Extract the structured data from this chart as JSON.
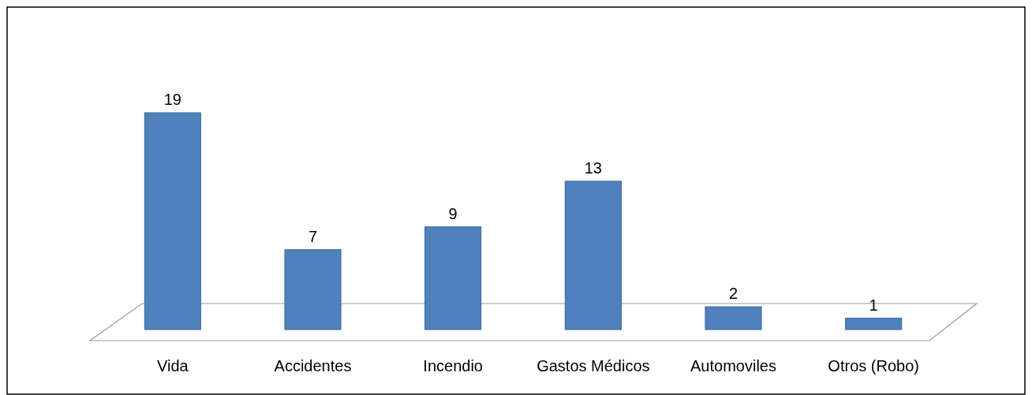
{
  "chart_data": {
    "type": "bar",
    "categories": [
      "Vida",
      "Accidentes",
      "Incendio",
      "Gastos Médicos",
      "Automoviles",
      "Otros (Robo)"
    ],
    "values": [
      19,
      7,
      9,
      13,
      2,
      1
    ],
    "color": "#4f81bd",
    "data_labels": true
  }
}
